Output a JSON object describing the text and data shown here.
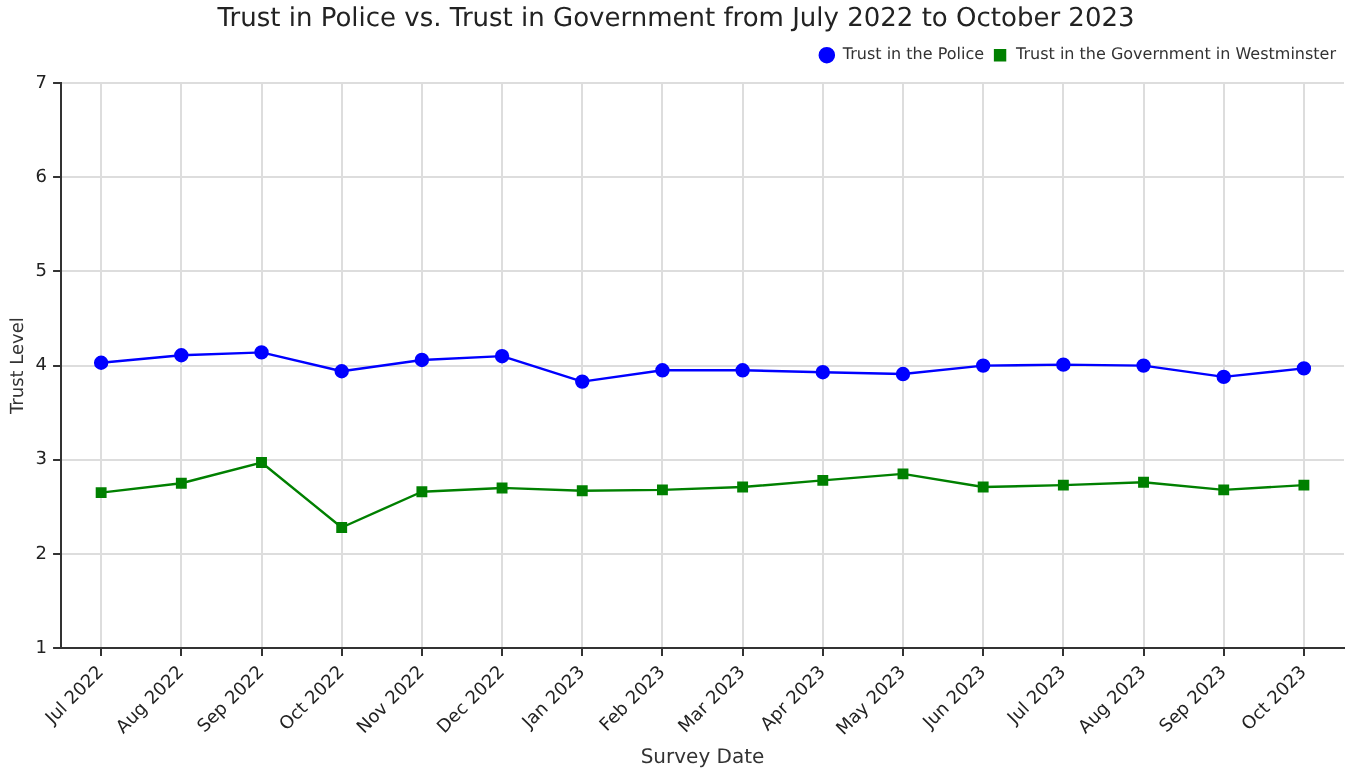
{
  "chart_data": {
    "type": "line",
    "title": "Trust in Police vs. Trust in Government from July 2022 to October 2023",
    "xlabel": "Survey Date",
    "ylabel": "Trust Level",
    "categories": [
      "Jul 2022",
      "Aug 2022",
      "Sep 2022",
      "Oct 2022",
      "Nov 2022",
      "Dec 2022",
      "Jan 2023",
      "Feb 2023",
      "Mar 2023",
      "Apr 2023",
      "May 2023",
      "Jun 2023",
      "Jul 2023",
      "Aug 2023",
      "Sep 2023",
      "Oct 2023"
    ],
    "series": [
      {
        "name": "Trust in the Police",
        "color": "#0000ff",
        "marker": "circle",
        "values": [
          4.03,
          4.11,
          4.14,
          3.94,
          4.06,
          4.1,
          3.83,
          3.95,
          3.95,
          3.93,
          3.91,
          4.0,
          4.01,
          4.0,
          3.88,
          3.97
        ]
      },
      {
        "name": "Trust in the Government in Westminster",
        "color": "#008000",
        "marker": "square",
        "values": [
          2.65,
          2.75,
          2.97,
          2.28,
          2.66,
          2.7,
          2.67,
          2.68,
          2.71,
          2.78,
          2.85,
          2.71,
          2.73,
          2.76,
          2.68,
          2.73
        ]
      }
    ],
    "ylim": [
      1,
      7
    ],
    "yticks": [
      1,
      2,
      3,
      4,
      5,
      6,
      7
    ],
    "grid": true,
    "legend": "top right",
    "line_style": "solid"
  }
}
